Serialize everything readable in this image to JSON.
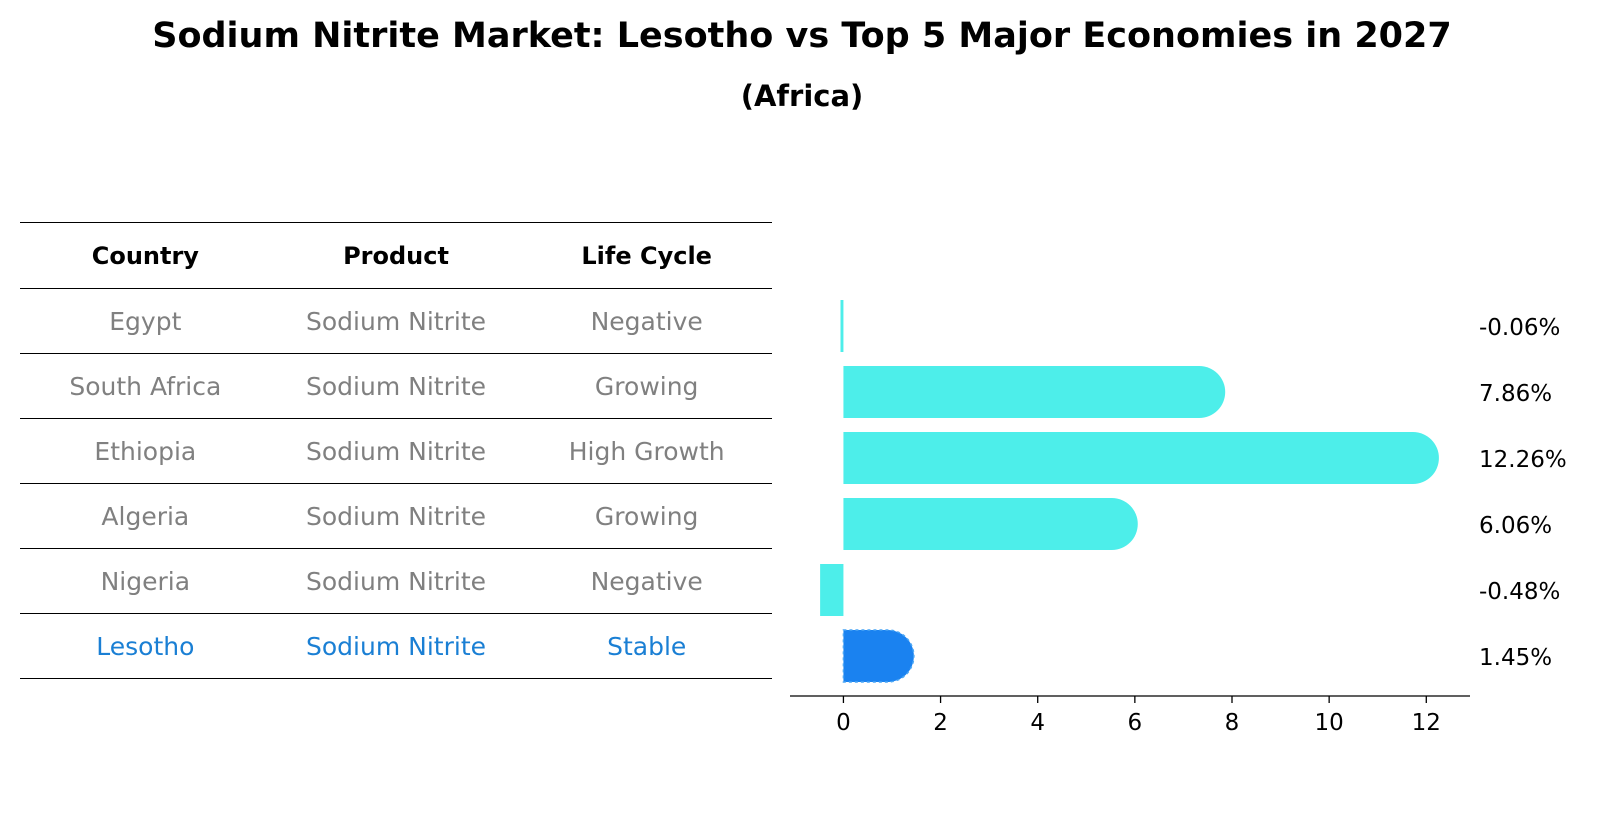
{
  "title": "Sodium Nitrite Market: Lesotho vs Top 5 Major Economies in 2027",
  "subtitle": "(Africa)",
  "table": {
    "headers": [
      "Country",
      "Product",
      "Life Cycle"
    ],
    "rows": [
      {
        "country": "Egypt",
        "product": "Sodium Nitrite",
        "life_cycle": "Negative"
      },
      {
        "country": "South Africa",
        "product": "Sodium Nitrite",
        "life_cycle": "Growing"
      },
      {
        "country": "Ethiopia",
        "product": "Sodium Nitrite",
        "life_cycle": "High Growth"
      },
      {
        "country": "Algeria",
        "product": "Sodium Nitrite",
        "life_cycle": "Growing"
      },
      {
        "country": "Nigeria",
        "product": "Sodium Nitrite",
        "life_cycle": "Negative"
      },
      {
        "country": "Lesotho",
        "product": "Sodium Nitrite",
        "life_cycle": "Stable"
      }
    ],
    "highlight_row": "Lesotho"
  },
  "chart_data": {
    "type": "bar",
    "orientation": "horizontal",
    "categories": [
      "Egypt",
      "South Africa",
      "Ethiopia",
      "Algeria",
      "Nigeria",
      "Lesotho"
    ],
    "values": [
      -0.06,
      7.86,
      12.26,
      6.06,
      -0.48,
      1.45
    ],
    "value_labels": [
      "-0.06%",
      "7.86%",
      "12.26%",
      "6.06%",
      "-0.48%",
      "1.45%"
    ],
    "xticks": [
      0,
      2,
      4,
      6,
      8,
      10,
      12
    ],
    "xlim": [
      -1.1,
      12.9
    ],
    "grid": false,
    "colors": {
      "default": "#4deeea",
      "highlight": "#1a82f0",
      "highlight_text": "#1a7fd4",
      "muted_text": "#808080"
    },
    "highlight": "Lesotho"
  }
}
